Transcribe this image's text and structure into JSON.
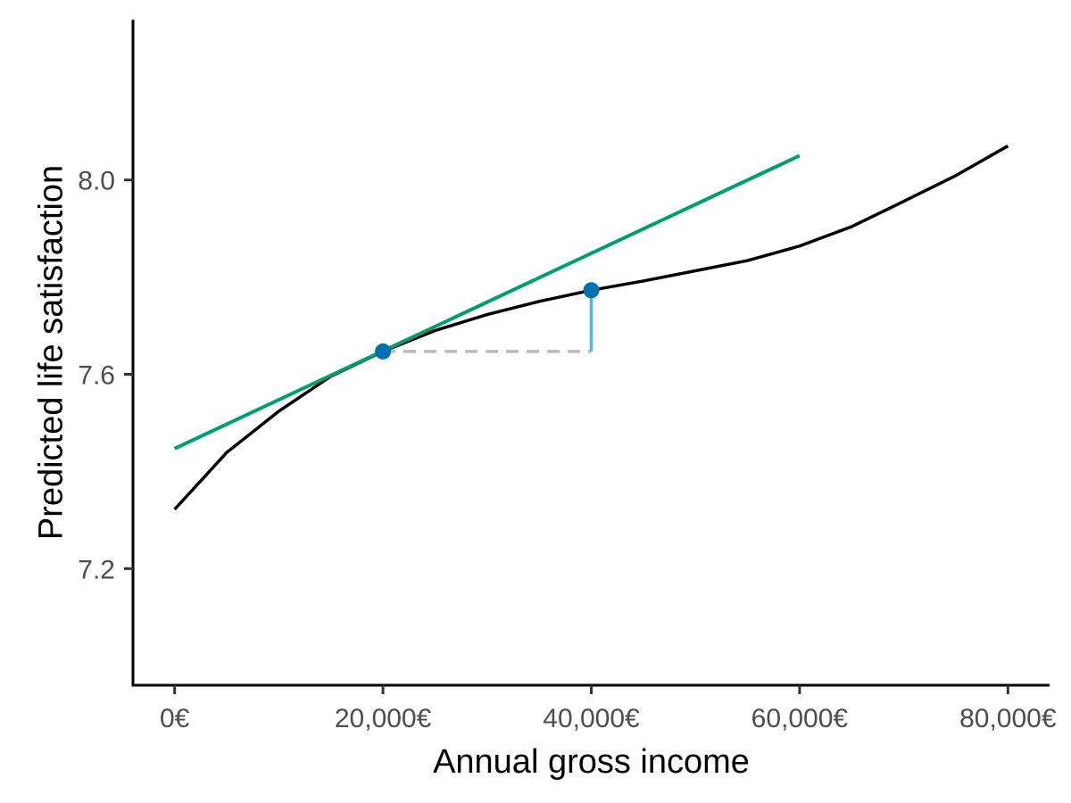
{
  "chart_data": {
    "type": "line",
    "title": "",
    "xlabel": "Annual gross income",
    "ylabel": "Predicted life satisfaction",
    "xlim": [
      -4000,
      84000
    ],
    "ylim": [
      6.96,
      8.33
    ],
    "x_ticks": [
      0,
      20000,
      40000,
      60000,
      80000
    ],
    "x_tick_labels": [
      "0€",
      "20,000€",
      "40,000€",
      "60,000€",
      "80,000€"
    ],
    "y_ticks": [
      7.2,
      7.6,
      8.0
    ],
    "y_tick_labels": [
      "7.2",
      "7.6",
      "8.0"
    ],
    "grid": false,
    "series": [
      {
        "role": "curve",
        "color": "#000000",
        "x": [
          0,
          5000,
          10000,
          15000,
          20000,
          25000,
          30000,
          35000,
          40000,
          45000,
          50000,
          55000,
          60000,
          65000,
          70000,
          75000,
          80000
        ],
        "y": [
          7.322,
          7.439,
          7.524,
          7.596,
          7.647,
          7.69,
          7.723,
          7.75,
          7.773,
          7.792,
          7.813,
          7.834,
          7.864,
          7.904,
          7.956,
          8.009,
          8.07
        ]
      },
      {
        "role": "tangent",
        "color": "#009E73",
        "x": [
          0,
          60000
        ],
        "y": [
          7.447,
          8.05
        ]
      },
      {
        "role": "horizontal-step",
        "color": "#BBBBBB",
        "dashed": true,
        "x": [
          20000,
          40000
        ],
        "y": [
          7.647,
          7.647
        ]
      },
      {
        "role": "vertical-step",
        "color": "#56B4E9",
        "x": [
          40000,
          40000
        ],
        "y": [
          7.647,
          7.773
        ]
      }
    ],
    "points": [
      {
        "x": 20000,
        "y": 7.647,
        "color": "#0072B2"
      },
      {
        "x": 40000,
        "y": 7.773,
        "color": "#0072B2"
      }
    ]
  }
}
